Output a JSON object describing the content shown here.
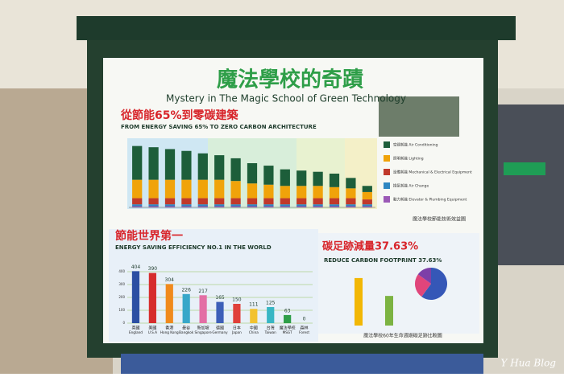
{
  "board": {
    "title": "魔法學校的奇蹟",
    "subtitle": "Mystery in The Magic School of Green Technology",
    "top_heading": "從節能65%到零碳建築",
    "top_heading_en": "FROM ENERGY SAVING 65% TO ZERO CARBON ARCHITECTURE",
    "top_caption": "魔法學校節能技術效益圖",
    "left_heading": "節能世界第一",
    "left_heading_en": "ENERGY SAVING EFFICIENCY NO.1 IN THE WORLD",
    "right_heading": "碳足跡減量37.63%",
    "right_heading_en": "REDUCE CARBON FOOTPRINT 37.63%",
    "bottom_caption": "魔法學校60年生命週期碳足跡比較圖"
  },
  "chart_data": [
    {
      "type": "stacked_bar",
      "ylim": [
        0,
        110
      ],
      "series": [
        {
          "name": "動力耗能 Elevator & Plumbing Equipment",
          "color": "#9b59b6",
          "values": [
            2,
            2,
            2,
            2,
            2,
            2,
            2,
            2,
            2,
            2,
            2,
            2,
            2,
            2,
            2
          ]
        },
        {
          "name": "換氣耗能 Air Change",
          "color": "#2e86c1",
          "values": [
            3,
            3,
            3,
            3,
            3,
            3,
            3,
            3,
            3,
            3,
            3,
            3,
            3,
            3,
            3
          ]
        },
        {
          "name": "設備耗能 Mechanical & Electrical Equipment",
          "color": "#c0392b",
          "values": [
            10,
            10,
            10,
            10,
            10,
            10,
            10,
            10,
            10,
            10,
            10,
            10,
            10,
            10,
            8
          ]
        },
        {
          "name": "照明耗能 Lighting",
          "color": "#f0a30a",
          "values": [
            30,
            30,
            30,
            30,
            30,
            30,
            28,
            24,
            22,
            20,
            20,
            20,
            18,
            16,
            12
          ]
        },
        {
          "name": "空調耗能 Air Conditioning",
          "color": "#1d5e3a",
          "values": [
            55,
            53,
            50,
            47,
            43,
            40,
            37,
            33,
            31,
            27,
            25,
            23,
            22,
            17,
            10
          ]
        }
      ]
    },
    {
      "type": "bar",
      "ylim": [
        0,
        450
      ],
      "yticks": [
        0,
        100,
        200,
        300,
        400
      ],
      "grid": true,
      "categories": [
        "England",
        "U.S.A",
        "Hong Kong",
        "Bangkok",
        "Singapore",
        "Germany",
        "Japan",
        "China",
        "Taiwan",
        "MSGT",
        "Forest"
      ],
      "categories_zh": [
        "英國",
        "美國",
        "香港",
        "曼谷",
        "新加坡",
        "德國",
        "日本",
        "中國",
        "台灣",
        "魔法學校",
        "森林"
      ],
      "values": [
        404,
        390,
        304,
        226,
        217,
        165,
        150,
        111,
        125,
        63,
        0
      ],
      "colors": [
        "#2c4fa3",
        "#d62c2c",
        "#f08a1c",
        "#37a7c9",
        "#e36fa5",
        "#3d5fb8",
        "#e0403a",
        "#f2c230",
        "#38b6c4",
        "#2e9e48",
        "#2e9e48"
      ]
    },
    {
      "type": "bar",
      "ylim": [
        0,
        110
      ],
      "values": [
        100,
        62.37
      ],
      "colors": [
        "#f2b705",
        "#7cb342"
      ]
    },
    {
      "type": "pie",
      "values": [
        60,
        25,
        15
      ],
      "colors": [
        "#3557b7",
        "#e0457b",
        "#7d3fa8"
      ]
    }
  ],
  "watermark": "Y Hua Blog"
}
